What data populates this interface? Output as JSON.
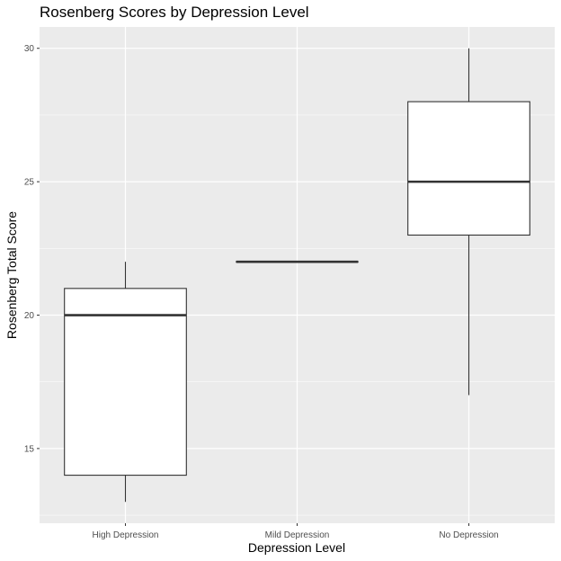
{
  "chart_data": {
    "type": "boxplot",
    "title": "Rosenberg Scores by Depression Level",
    "xlabel": "Depression Level",
    "ylabel": "Rosenberg Total Score",
    "ylim": [
      12.2,
      30.8
    ],
    "yticks": [
      15,
      20,
      25,
      30
    ],
    "grid": true,
    "categories": [
      "High Depression",
      "Mild Depression",
      "No Depression"
    ],
    "boxes": [
      {
        "category": "High Depression",
        "min": 13,
        "q1": 14,
        "median": 20,
        "q3": 21,
        "max": 22
      },
      {
        "category": "Mild Depression",
        "min": 22,
        "q1": 22,
        "median": 22,
        "q3": 22,
        "max": 22
      },
      {
        "category": "No Depression",
        "min": 17,
        "q1": 23,
        "median": 25,
        "q3": 28,
        "max": 30
      }
    ],
    "colors": {
      "panel": "#ebebeb",
      "grid": "#ffffff",
      "box_fill": "#ffffff",
      "box_line": "#333333"
    }
  }
}
